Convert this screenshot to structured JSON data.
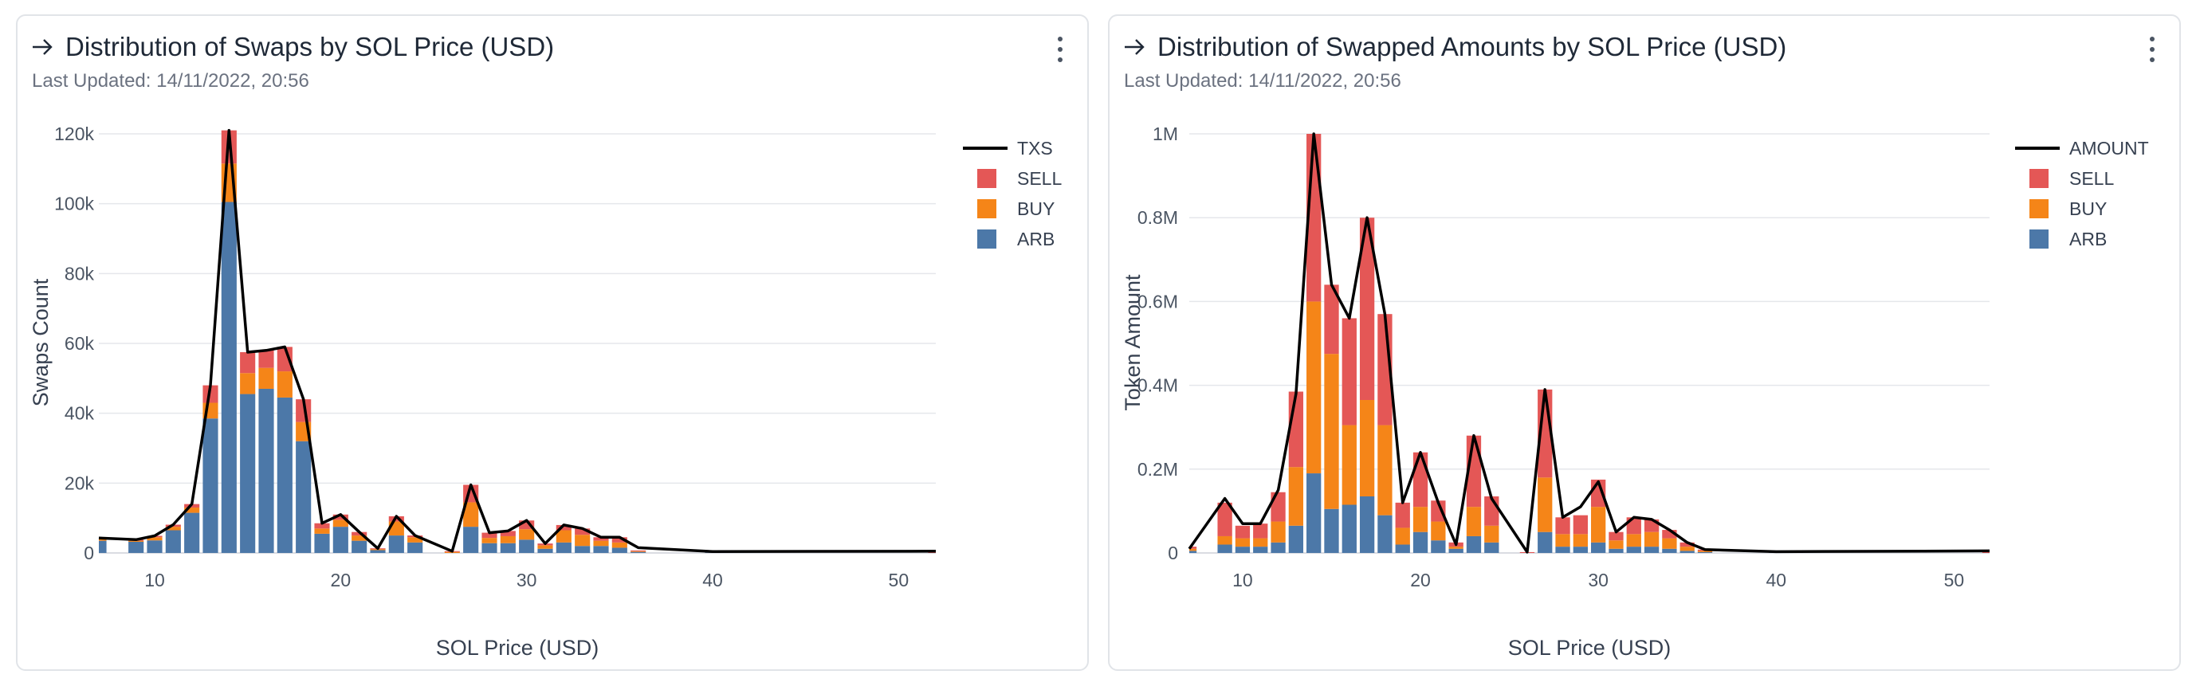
{
  "cards": [
    {
      "title": "Distribution of Swaps by SOL Price (USD)",
      "updated": "Last Updated: 14/11/2022, 20:56"
    },
    {
      "title": "Distribution of Swapped Amounts by SOL Price (USD)",
      "updated": "Last Updated: 14/11/2022, 20:56"
    }
  ],
  "colors": {
    "sell": "#e45756",
    "buy": "#f58518",
    "arb": "#4c78a8",
    "line": "#000000",
    "grid": "#e5e7eb"
  },
  "chart_data": [
    {
      "type": "bar",
      "stacked": true,
      "title": "",
      "xlabel": "SOL Price (USD)",
      "ylabel": "Swaps Count",
      "xlim": [
        7,
        52
      ],
      "ylim": [
        0,
        120000
      ],
      "xticks": [
        10,
        20,
        30,
        40,
        50
      ],
      "xtick_labels": [
        "10",
        "20",
        "30",
        "40",
        "50"
      ],
      "yticks": [
        0,
        20000,
        40000,
        60000,
        80000,
        100000,
        120000
      ],
      "ytick_labels": [
        "0",
        "20k",
        "40k",
        "60k",
        "80k",
        "100k",
        "120k"
      ],
      "grid": true,
      "legend_position": "top-right",
      "legend": [
        "TXS",
        "SELL",
        "BUY",
        "ARB"
      ],
      "x": [
        7,
        9,
        10,
        11,
        12,
        13,
        14,
        15,
        16,
        17,
        18,
        19,
        20,
        21,
        22,
        23,
        24,
        26,
        27,
        28,
        29,
        30,
        31,
        32,
        33,
        34,
        35,
        36,
        40,
        52
      ],
      "series": [
        {
          "name": "ARB",
          "values": [
            3500,
            3200,
            3600,
            6500,
            11500,
            38500,
            100500,
            45500,
            47000,
            44500,
            32000,
            5500,
            7500,
            3500,
            800,
            5000,
            3000,
            0,
            7500,
            2800,
            2800,
            3800,
            1200,
            3000,
            2000,
            2000,
            1500,
            300,
            100,
            0
          ]
        },
        {
          "name": "BUY",
          "values": [
            600,
            300,
            900,
            1000,
            1500,
            4500,
            11000,
            6000,
            6000,
            7500,
            5500,
            1500,
            2000,
            1500,
            300,
            4000,
            1500,
            300,
            7000,
            1500,
            2000,
            3000,
            1000,
            3500,
            3200,
            1500,
            1500,
            200,
            50,
            0
          ]
        },
        {
          "name": "SELL",
          "values": [
            200,
            300,
            400,
            600,
            1000,
            5000,
            9500,
            6000,
            5000,
            7000,
            6500,
            1500,
            1500,
            1000,
            200,
            1500,
            500,
            200,
            5000,
            1500,
            1500,
            2500,
            500,
            1500,
            1800,
            1000,
            1500,
            200,
            50,
            500
          ]
        }
      ],
      "line": {
        "name": "TXS",
        "x": [
          7,
          9,
          10,
          11,
          12,
          13,
          14,
          15,
          16,
          17,
          18,
          19,
          20,
          21,
          22,
          23,
          24,
          26,
          27,
          28,
          29,
          30,
          31,
          32,
          33,
          34,
          35,
          36,
          40,
          52
        ],
        "values": [
          4300,
          3800,
          4900,
          8100,
          14000,
          48000,
          121000,
          57500,
          58000,
          59000,
          44000,
          8500,
          11000,
          6000,
          1300,
          10500,
          5000,
          500,
          19500,
          5800,
          6300,
          9300,
          2700,
          8000,
          7000,
          4500,
          4500,
          1500,
          400,
          500
        ]
      }
    },
    {
      "type": "bar",
      "stacked": true,
      "title": "",
      "xlabel": "SOL Price (USD)",
      "ylabel": "Token Amount",
      "xlim": [
        7,
        52
      ],
      "ylim": [
        0,
        1000000
      ],
      "xticks": [
        10,
        20,
        30,
        40,
        50
      ],
      "xtick_labels": [
        "10",
        "20",
        "30",
        "40",
        "50"
      ],
      "yticks": [
        0,
        200000,
        400000,
        600000,
        800000,
        1000000
      ],
      "ytick_labels": [
        "0",
        "0.2M",
        "0.4M",
        "0.6M",
        "0.8M",
        "1M"
      ],
      "grid": true,
      "legend_position": "top-right",
      "legend": [
        "AMOUNT",
        "SELL",
        "BUY",
        "ARB"
      ],
      "x": [
        7,
        9,
        10,
        11,
        12,
        13,
        14,
        15,
        16,
        17,
        18,
        19,
        20,
        21,
        22,
        23,
        24,
        26,
        27,
        28,
        29,
        30,
        31,
        32,
        33,
        34,
        35,
        36,
        40,
        52
      ],
      "series": [
        {
          "name": "ARB",
          "values": [
            5000,
            20000,
            15000,
            15000,
            25000,
            65000,
            190000,
            105000,
            115000,
            135000,
            90000,
            20000,
            50000,
            30000,
            10000,
            40000,
            25000,
            0,
            50000,
            15000,
            15000,
            25000,
            10000,
            15000,
            15000,
            10000,
            5000,
            2000,
            1000,
            0
          ]
        },
        {
          "name": "BUY",
          "values": [
            5000,
            20000,
            20000,
            20000,
            50000,
            140000,
            410000,
            370000,
            190000,
            230000,
            215000,
            40000,
            60000,
            45000,
            5000,
            70000,
            40000,
            0,
            130000,
            30000,
            30000,
            85000,
            20000,
            30000,
            35000,
            25000,
            10000,
            3000,
            1000,
            0
          ]
        },
        {
          "name": "SELL",
          "values": [
            5000,
            80000,
            30000,
            35000,
            70000,
            180000,
            400000,
            165000,
            255000,
            435000,
            265000,
            60000,
            130000,
            50000,
            10000,
            170000,
            70000,
            2000,
            210000,
            40000,
            45000,
            65000,
            20000,
            40000,
            30000,
            20000,
            10000,
            3000,
            1000,
            5000
          ]
        }
      ],
      "line": {
        "name": "AMOUNT",
        "x": [
          7,
          9,
          10,
          11,
          12,
          13,
          14,
          15,
          16,
          17,
          18,
          19,
          20,
          21,
          22,
          23,
          24,
          26,
          27,
          28,
          29,
          30,
          31,
          32,
          33,
          34,
          35,
          36,
          40,
          52
        ],
        "values": [
          10000,
          130000,
          70000,
          70000,
          150000,
          380000,
          1000000,
          640000,
          560000,
          800000,
          570000,
          120000,
          240000,
          120000,
          20000,
          280000,
          130000,
          2000,
          390000,
          85000,
          110000,
          170000,
          50000,
          85000,
          80000,
          55000,
          25000,
          8000,
          3000,
          5000
        ]
      }
    }
  ]
}
